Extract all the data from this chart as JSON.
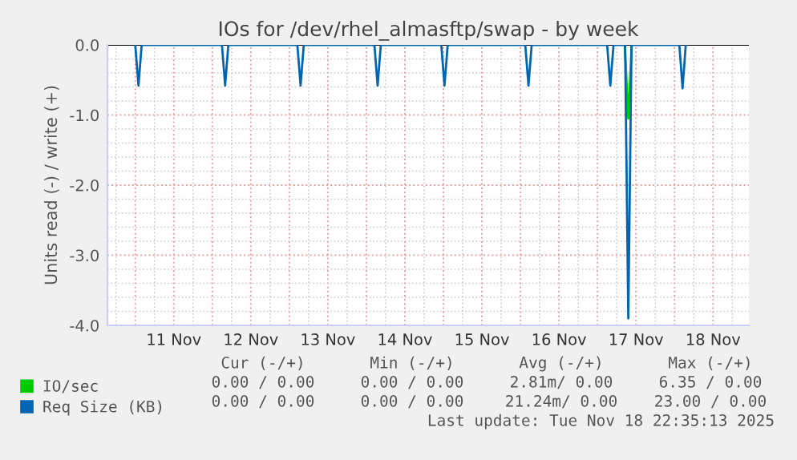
{
  "chart_data": {
    "type": "line",
    "title": "IOs for /dev/rhel_almasftp/swap - by week",
    "ylabel": "Units read (-) / write (+)",
    "series": [
      {
        "name": "IO/sec",
        "color": "#00cc00",
        "x": [
          "2025-11-17T08:30",
          "2025-11-17T09:36",
          "2025-11-17T10:40"
        ],
        "values": [
          0,
          -1.05,
          0
        ]
      },
      {
        "name": "Req Size (KB)",
        "color": "#0066b3",
        "x": [
          "2025-11-11T00:00",
          "2025-11-11T01:00",
          "2025-11-11T02:00",
          "2025-11-12T03:00",
          "2025-11-12T04:00",
          "2025-11-12T05:00",
          "2025-11-13T02:30",
          "2025-11-13T03:30",
          "2025-11-13T04:30",
          "2025-11-14T02:30",
          "2025-11-14T03:30",
          "2025-11-14T04:30",
          "2025-11-14T23:20",
          "2025-11-15T00:20",
          "2025-11-15T01:20",
          "2025-11-16T01:30",
          "2025-11-16T02:30",
          "2025-11-16T03:30",
          "2025-11-17T03:00",
          "2025-11-17T04:00",
          "2025-11-17T05:00",
          "2025-11-17T08:36",
          "2025-11-17T09:36",
          "2025-11-17T10:36",
          "2025-11-18T01:30",
          "2025-11-18T02:30",
          "2025-11-18T03:30"
        ],
        "values": [
          0,
          -0.58,
          0,
          0,
          -0.58,
          0,
          0,
          -0.58,
          0,
          0,
          -0.58,
          0,
          0,
          -0.58,
          0,
          0,
          -0.58,
          0,
          0,
          -0.58,
          0,
          0,
          -3.9,
          0,
          0,
          -0.62,
          0
        ]
      }
    ],
    "xlim": [
      "2025-11-10T15:20",
      "2025-11-18T23:10"
    ],
    "xticks": [
      {
        "value": "2025-11-11T00:00",
        "label": null
      },
      {
        "value": "2025-11-11T12:00",
        "label": "11 Nov"
      },
      {
        "value": "2025-11-12T00:00",
        "label": null
      },
      {
        "value": "2025-11-12T12:00",
        "label": "12 Nov"
      },
      {
        "value": "2025-11-13T00:00",
        "label": null
      },
      {
        "value": "2025-11-13T12:00",
        "label": "13 Nov"
      },
      {
        "value": "2025-11-14T00:00",
        "label": null
      },
      {
        "value": "2025-11-14T12:00",
        "label": "14 Nov"
      },
      {
        "value": "2025-11-15T00:00",
        "label": null
      },
      {
        "value": "2025-11-15T12:00",
        "label": "15 Nov"
      },
      {
        "value": "2025-11-16T00:00",
        "label": null
      },
      {
        "value": "2025-11-16T12:00",
        "label": "16 Nov"
      },
      {
        "value": "2025-11-17T00:00",
        "label": null
      },
      {
        "value": "2025-11-17T12:00",
        "label": "17 Nov"
      },
      {
        "value": "2025-11-18T00:00",
        "label": null
      },
      {
        "value": "2025-11-18T12:00",
        "label": "18 Nov"
      }
    ],
    "ylim": [
      -4,
      0
    ],
    "yticks": [
      {
        "value": 0,
        "label": "0.0"
      },
      {
        "value": -1,
        "label": "-1.0"
      },
      {
        "value": -2,
        "label": "-2.0"
      },
      {
        "value": -3,
        "label": "-3.0"
      },
      {
        "value": -4,
        "label": "-4.0"
      }
    ],
    "grid": true,
    "legend": "bottom",
    "marker": "none",
    "line_style": "solid",
    "annotations": [
      "Cur (-/+)",
      "Min (-/+)",
      "Avg (-/+)",
      "Max (-/+)",
      "0.00 / 0.00",
      "0.00 / 0.00",
      "2.81m/ 0.00",
      "6.35 / 0.00",
      "0.00 / 0.00",
      "0.00 / 0.00",
      "21.24m/ 0.00",
      "23.00 / 0.00",
      "Last update: Tue Nov 18 22:35:13 2025"
    ]
  }
}
